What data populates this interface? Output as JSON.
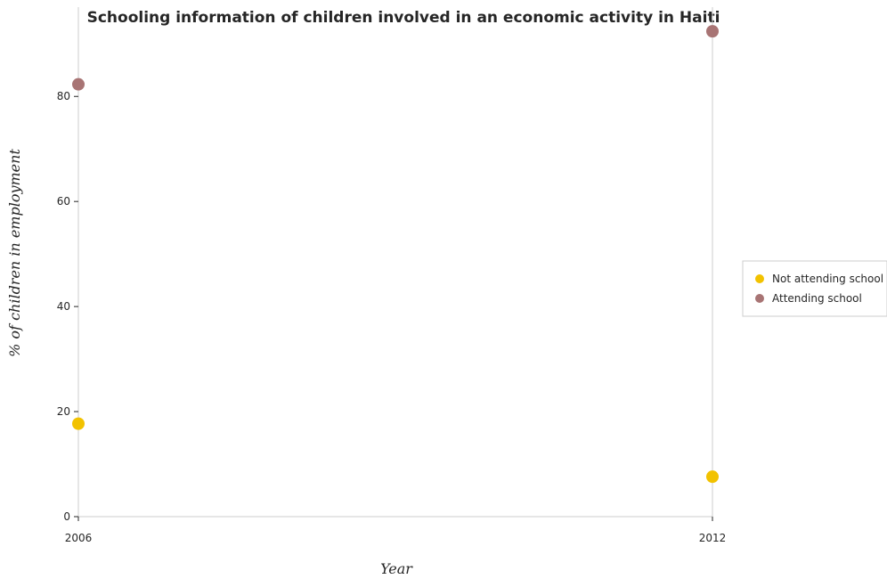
{
  "chart_data": {
    "type": "scatter",
    "title": "Schooling information of children involved in an economic activity in Haiti",
    "xlabel": "Year",
    "ylabel": "% of children in employment",
    "categories": [
      "2006",
      "2012"
    ],
    "y_ticks": [
      "0",
      "20",
      "40",
      "60",
      "80"
    ],
    "ylim": [
      0,
      97
    ],
    "grid": false,
    "legend_position": "right",
    "series": [
      {
        "name": "Not attending school",
        "color": "#f2c200",
        "values": [
          17.7,
          7.6
        ]
      },
      {
        "name": "Attending school",
        "color": "#a87474",
        "values": [
          82.3,
          92.4
        ]
      }
    ]
  }
}
